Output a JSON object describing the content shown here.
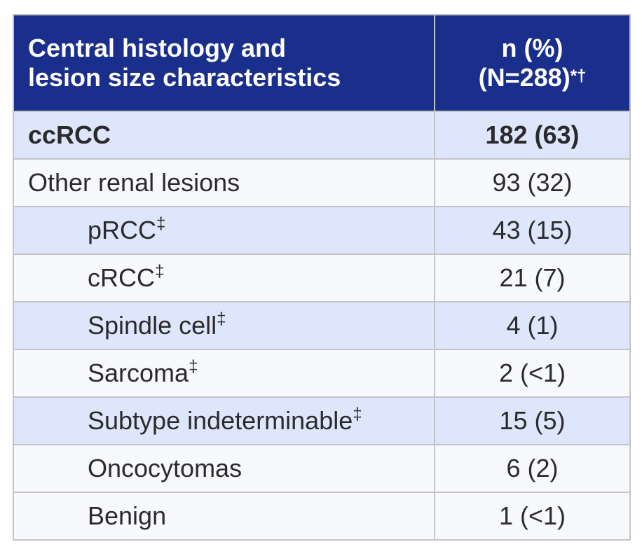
{
  "table": {
    "header": {
      "col1_line1": "Central histology and",
      "col1_line2": "lesion size characteristics",
      "col2_line1": "n (%)",
      "col2_line2": "(N=288)",
      "col2_sup": "*†"
    },
    "rows": [
      {
        "label": "ccRCC",
        "mark": "",
        "value": "182 (63)"
      },
      {
        "label": "Other renal lesions",
        "mark": "",
        "value": "93 (32)"
      },
      {
        "label": "pRCC",
        "mark": "‡",
        "value": "43 (15)"
      },
      {
        "label": "cRCC",
        "mark": "‡",
        "value": "21 (7)"
      },
      {
        "label": "Spindle cell",
        "mark": "‡",
        "value": "4 (1)"
      },
      {
        "label": "Sarcoma",
        "mark": "‡",
        "value": "2 (<1)"
      },
      {
        "label": "Subtype indeterminable",
        "mark": "‡",
        "value": "15 (5)"
      },
      {
        "label": "Oncocytomas",
        "mark": "",
        "value": "6 (2)"
      },
      {
        "label": "Benign",
        "mark": "",
        "value": "1 (<1)"
      }
    ]
  }
}
